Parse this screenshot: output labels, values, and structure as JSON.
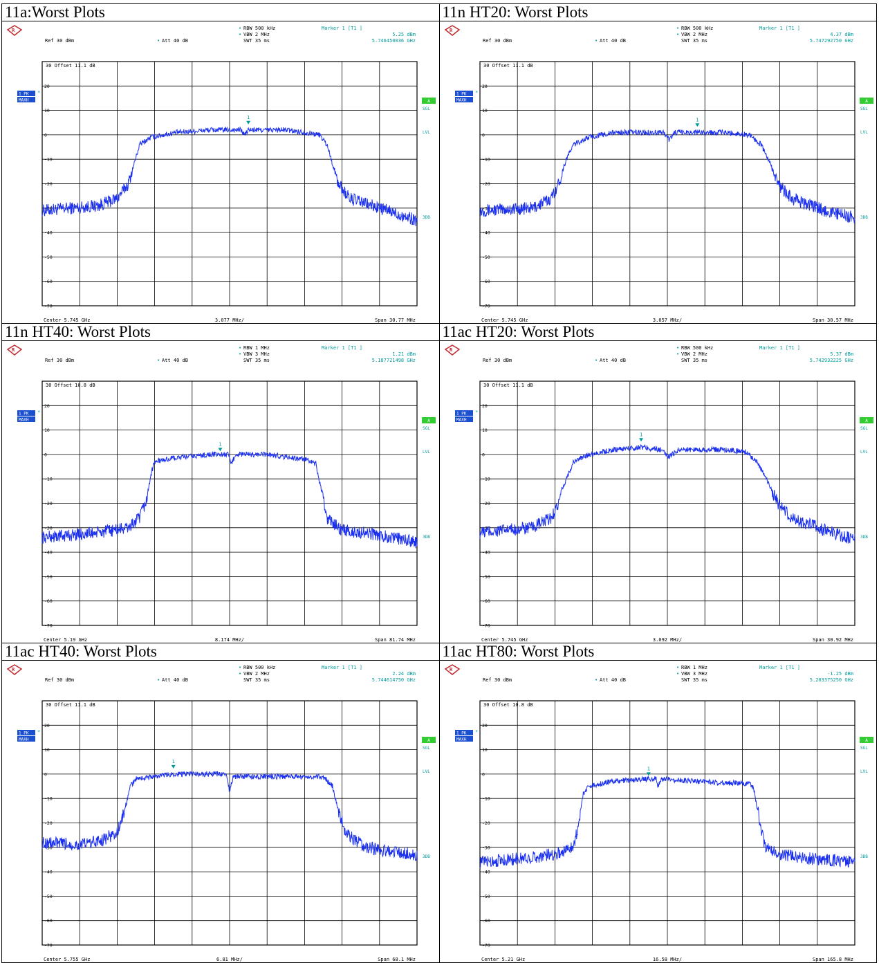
{
  "chart_data": [
    {
      "type": "line",
      "title": "11a:Worst Plots",
      "rbw": "RBW 500 kHz",
      "vbw": "VBW 2 MHz",
      "swt": "SWT 35 ms",
      "marker_title": "Marker 1 [T1 ]",
      "marker_value": "5.25 dBm",
      "marker_freq": "5.746450036 GHz",
      "ref": "Ref  30 dBm",
      "att": "Att  40 dB",
      "offset_label": "30  Offset   11.1 dB",
      "center": "Center 5.745 GHz",
      "div": "3.077 MHz/",
      "span": "Span 30.77 MHz",
      "y_ticks": [
        "20",
        "10",
        "0",
        "-10",
        "-20",
        "-30",
        "-40",
        "-50",
        "-60",
        "-70"
      ],
      "ylim": [
        -70,
        30
      ],
      "trace_level": "1 PK",
      "trace_mode": "MAXH",
      "right_badge": "A",
      "right_sgl": "SGL",
      "right_lvl": "LVL",
      "right_3db": "3DB",
      "marker_label": "1",
      "marker": {
        "x": 5.5,
        "y": 4
      },
      "series": [
        {
          "color": "#1a2ff0",
          "points": [
            [
              0,
              -31
            ],
            [
              1.5,
              -29
            ],
            [
              2,
              -26
            ],
            [
              2.3,
              -20
            ],
            [
              2.45,
              -12
            ],
            [
              2.6,
              -4
            ],
            [
              2.9,
              -1
            ],
            [
              3.6,
              1
            ],
            [
              4.5,
              2
            ],
            [
              5,
              2
            ],
            [
              5.3,
              2
            ],
            [
              5.4,
              0
            ],
            [
              5.5,
              2
            ],
            [
              6.5,
              2
            ],
            [
              7,
              1
            ],
            [
              7.4,
              0
            ],
            [
              7.6,
              -4
            ],
            [
              7.75,
              -12
            ],
            [
              7.9,
              -20
            ],
            [
              8.2,
              -26
            ],
            [
              9,
              -30
            ],
            [
              10,
              -35
            ]
          ]
        }
      ]
    },
    {
      "type": "line",
      "title": "11n HT20: Worst Plots",
      "rbw": "RBW 500 kHz",
      "vbw": "VBW 2 MHz",
      "swt": "SWT 35 ms",
      "marker_title": "Marker 1 [T1 ]",
      "marker_value": "4.37 dBm",
      "marker_freq": "5.747292750 GHz",
      "ref": "Ref  30 dBm",
      "att": "Att  40 dB",
      "offset_label": "30  Offset   11.1 dB",
      "center": "Center 5.745 GHz",
      "div": "3.057 MHz/",
      "span": "Span 30.57 MHz",
      "y_ticks": [
        "20",
        "10",
        "0",
        "-10",
        "-20",
        "-30",
        "-40",
        "-50",
        "-60",
        "-70"
      ],
      "ylim": [
        -70,
        30
      ],
      "trace_level": "1 PK",
      "trace_mode": "MAXH",
      "right_badge": "A",
      "right_sgl": "SGL",
      "right_lvl": "LVL",
      "right_3db": "3DB",
      "marker_label": "1",
      "marker": {
        "x": 5.8,
        "y": 3
      },
      "series": [
        {
          "color": "#1a2ff0",
          "points": [
            [
              0,
              -31
            ],
            [
              1.4,
              -30
            ],
            [
              1.9,
              -26
            ],
            [
              2.1,
              -20
            ],
            [
              2.3,
              -10
            ],
            [
              2.5,
              -4
            ],
            [
              2.9,
              -1
            ],
            [
              3.6,
              1
            ],
            [
              4.5,
              1
            ],
            [
              4.9,
              1
            ],
            [
              5.05,
              -2
            ],
            [
              5.2,
              1
            ],
            [
              6.5,
              1
            ],
            [
              7.2,
              0
            ],
            [
              7.5,
              -4
            ],
            [
              7.75,
              -12
            ],
            [
              7.95,
              -20
            ],
            [
              8.3,
              -26
            ],
            [
              9.2,
              -31
            ],
            [
              10,
              -34
            ]
          ]
        }
      ]
    },
    {
      "type": "line",
      "title": "11n HT40: Worst Plots",
      "rbw": "RBW 1 MHz",
      "vbw": "VBW 3 MHz",
      "swt": "SWT 35 ms",
      "marker_title": "Marker 1 [T1 ]",
      "marker_value": "1.21 dBm",
      "marker_freq": "5.187721498 GHz",
      "ref": "Ref  30 dBm",
      "att": "Att  40 dB",
      "offset_label": "30  Offset   10.8 dB",
      "center": "Center 5.19 GHz",
      "div": "8.174 MHz/",
      "span": "Span 81.74 MHz",
      "y_ticks": [
        "20",
        "10",
        "0",
        "-10",
        "-20",
        "-30",
        "-40",
        "-50",
        "-60",
        "-70"
      ],
      "ylim": [
        -70,
        30
      ],
      "trace_level": "1 PK",
      "trace_mode": "MAXH",
      "right_badge": "A",
      "right_sgl": "SGL",
      "right_lvl": "LVL",
      "right_3db": "3DB",
      "marker_label": "1",
      "marker": {
        "x": 4.75,
        "y": 1
      },
      "series": [
        {
          "color": "#1a2ff0",
          "points": [
            [
              0,
              -34
            ],
            [
              1.5,
              -32
            ],
            [
              2.3,
              -30
            ],
            [
              2.6,
              -26
            ],
            [
              2.8,
              -18
            ],
            [
              2.9,
              -8
            ],
            [
              3.0,
              -3
            ],
            [
              3.5,
              -1.5
            ],
            [
              4.5,
              0
            ],
            [
              4.95,
              0
            ],
            [
              5.05,
              -4
            ],
            [
              5.15,
              0
            ],
            [
              6,
              0
            ],
            [
              7,
              -2
            ],
            [
              7.3,
              -4
            ],
            [
              7.45,
              -15
            ],
            [
              7.6,
              -26
            ],
            [
              8,
              -31
            ],
            [
              9,
              -33
            ],
            [
              10,
              -36
            ]
          ]
        }
      ]
    },
    {
      "type": "line",
      "title": "11ac HT20: Worst Plots",
      "rbw": "RBW 500 kHz",
      "vbw": "VBW 2 MHz",
      "swt": "SWT 35 ms",
      "marker_title": "Marker 1 [T1 ]",
      "marker_value": "5.37 dBm",
      "marker_freq": "5.742932225 GHz",
      "ref": "Ref  30 dBm",
      "att": "Att  40 dB",
      "offset_label": "30  Offset   11.1 dB",
      "center": "Center 5.745 GHz",
      "div": "3.092 MHz/",
      "span": "Span 30.92 MHz",
      "y_ticks": [
        "20",
        "10",
        "0",
        "-10",
        "-20",
        "-30",
        "-40",
        "-50",
        "-60",
        "-70"
      ],
      "ylim": [
        -70,
        30
      ],
      "trace_level": "1 PK",
      "trace_mode": "MAXH",
      "right_badge": "A",
      "right_sgl": "SGL",
      "right_lvl": "LVL",
      "right_3db": "3DB",
      "marker_label": "1",
      "marker": {
        "x": 4.3,
        "y": 5
      },
      "series": [
        {
          "color": "#1a2ff0",
          "points": [
            [
              0,
              -32
            ],
            [
              1.4,
              -30
            ],
            [
              1.9,
              -26
            ],
            [
              2.1,
              -20
            ],
            [
              2.3,
              -10
            ],
            [
              2.5,
              -3
            ],
            [
              2.9,
              0
            ],
            [
              3.6,
              2
            ],
            [
              4.3,
              3
            ],
            [
              4.8,
              2
            ],
            [
              5.05,
              -1
            ],
            [
              5.3,
              2
            ],
            [
              6.5,
              2
            ],
            [
              7.1,
              1
            ],
            [
              7.4,
              -3
            ],
            [
              7.7,
              -12
            ],
            [
              7.95,
              -20
            ],
            [
              8.3,
              -26
            ],
            [
              9.2,
              -31
            ],
            [
              10,
              -35
            ]
          ]
        }
      ]
    },
    {
      "type": "line",
      "title": "11ac HT40: Worst Plots",
      "rbw": "RBW 500 kHz",
      "vbw": "VBW 2 MHz",
      "swt": "SWT 35 ms",
      "marker_title": "Marker 1 [T1 ]",
      "marker_value": "2.24 dBm",
      "marker_freq": "5.744614750 GHz",
      "ref": "Ref  30 dBm",
      "att": "Att  40 dB",
      "offset_label": "30  Offset   11.1 dB",
      "center": "Center 5.755 GHz",
      "div": "6.81 MHz/",
      "span": "Span 68.1 MHz",
      "y_ticks": [
        "20",
        "10",
        "0",
        "-10",
        "-20",
        "-30",
        "-40",
        "-50",
        "-60",
        "-70"
      ],
      "ylim": [
        -70,
        30
      ],
      "trace_level": "1 PK",
      "trace_mode": "MAXH",
      "right_badge": "A",
      "right_sgl": "SGL",
      "right_lvl": "LVL",
      "right_3db": "3DB",
      "marker_label": "1",
      "marker": {
        "x": 3.5,
        "y": 2
      },
      "series": [
        {
          "color": "#1a2ff0",
          "points": [
            [
              0,
              -28
            ],
            [
              1,
              -29
            ],
            [
              1.6,
              -27
            ],
            [
              2,
              -24
            ],
            [
              2.2,
              -15
            ],
            [
              2.35,
              -5
            ],
            [
              2.5,
              -2
            ],
            [
              3.5,
              0
            ],
            [
              4.3,
              0
            ],
            [
              4.9,
              0
            ],
            [
              5.0,
              -7
            ],
            [
              5.1,
              -1
            ],
            [
              6,
              -1
            ],
            [
              7.5,
              -1
            ],
            [
              7.75,
              -5
            ],
            [
              7.9,
              -15
            ],
            [
              8.1,
              -24
            ],
            [
              8.6,
              -30
            ],
            [
              9.5,
              -32
            ],
            [
              10,
              -33
            ]
          ]
        }
      ]
    },
    {
      "type": "line",
      "title": "11ac HT80: Worst Plots",
      "rbw": "RBW 1 MHz",
      "vbw": "VBW 3 MHz",
      "swt": "SWT 35 ms",
      "marker_title": "Marker 1 [T1 ]",
      "marker_value": "-1.25 dBm",
      "marker_freq": "5.203375250 GHz",
      "ref": "Ref  30 dBm",
      "att": "Att  40 dB",
      "offset_label": "30  Offset   10.8 dB",
      "center": "Center 5.21 GHz",
      "div": "16.58 MHz/",
      "span": "Span 165.8 MHz",
      "y_ticks": [
        "20",
        "10",
        "0",
        "-10",
        "-20",
        "-30",
        "-40",
        "-50",
        "-60",
        "-70"
      ],
      "ylim": [
        -70,
        30
      ],
      "trace_level": "1 PK",
      "trace_mode": "MAXH",
      "right_badge": "A",
      "right_sgl": "SGL",
      "right_lvl": "LVL",
      "right_3db": "3DB",
      "marker_label": "1",
      "marker": {
        "x": 4.5,
        "y": -1
      },
      "series": [
        {
          "color": "#1a2ff0",
          "points": [
            [
              0,
              -36
            ],
            [
              1.5,
              -34
            ],
            [
              2.2,
              -32
            ],
            [
              2.5,
              -29
            ],
            [
              2.65,
              -20
            ],
            [
              2.75,
              -8
            ],
            [
              2.9,
              -5
            ],
            [
              3.5,
              -3
            ],
            [
              4.5,
              -2
            ],
            [
              4.7,
              -2
            ],
            [
              4.75,
              -5
            ],
            [
              4.85,
              -2
            ],
            [
              5.8,
              -3
            ],
            [
              7.2,
              -4
            ],
            [
              7.3,
              -6
            ],
            [
              7.45,
              -18
            ],
            [
              7.6,
              -30
            ],
            [
              8,
              -33
            ],
            [
              9,
              -35
            ],
            [
              10,
              -36
            ]
          ]
        }
      ]
    }
  ]
}
